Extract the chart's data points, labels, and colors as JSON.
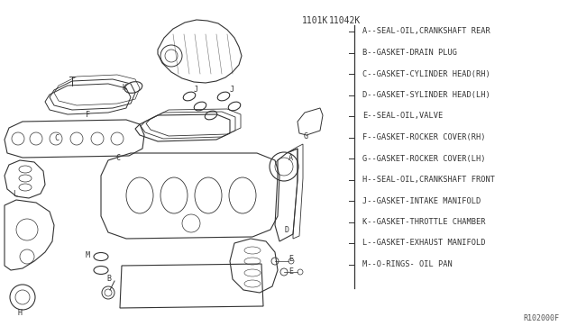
{
  "bg_color": "#ffffff",
  "part_numbers": [
    "1101K",
    "11042K"
  ],
  "legend_items": [
    "A--SEAL-OIL,CRANKSHAFT REAR",
    "B--GASKET-DRAIN PLUG",
    "C--GASKET-CYLINDER HEAD(RH)",
    "D--GASKET-SYLINDER HEAD(LH)",
    "E--SEAL-OIL,VALVE",
    "F--GASKET-ROCKER COVER(RH)",
    "G--GASKET-ROCKER COVER(LH)",
    "H--SEAL-OIL,CRANKSHAFT FRONT",
    "J--GASKET-INTAKE MANIFOLD",
    "K--GASKET-THROTTLE CHAMBER",
    "L--GASKET-EXHAUST MANIFOLD",
    "M--O-RINGS- OIL PAN"
  ],
  "ref_code": "R102000F",
  "ec": "#333333",
  "lw": 0.7
}
